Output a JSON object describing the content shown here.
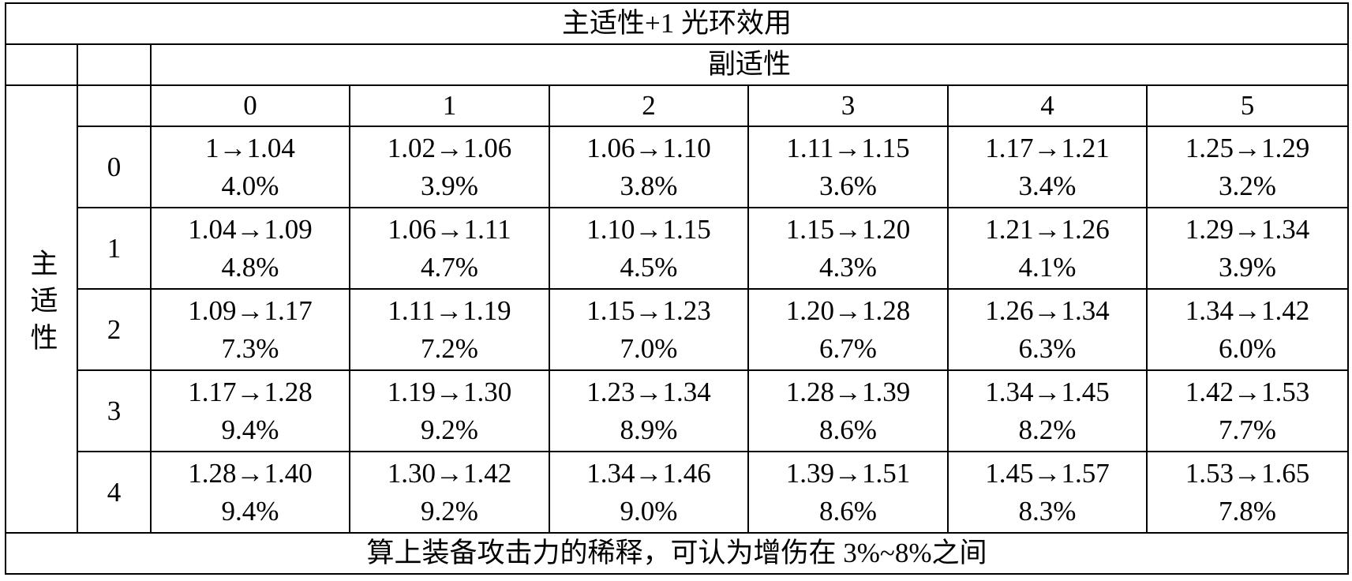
{
  "table": {
    "title": "主适性+1 光环效用",
    "column_header": "副适性",
    "row_header": "主适性",
    "columns": [
      "0",
      "1",
      "2",
      "3",
      "4",
      "5"
    ],
    "rows": [
      {
        "label": "0",
        "cells": [
          [
            "1→1.04",
            "4.0%"
          ],
          [
            "1.02→1.06",
            "3.9%"
          ],
          [
            "1.06→1.10",
            "3.8%"
          ],
          [
            "1.11→1.15",
            "3.6%"
          ],
          [
            "1.17→1.21",
            "3.4%"
          ],
          [
            "1.25→1.29",
            "3.2%"
          ]
        ]
      },
      {
        "label": "1",
        "cells": [
          [
            "1.04→1.09",
            "4.8%"
          ],
          [
            "1.06→1.11",
            "4.7%"
          ],
          [
            "1.10→1.15",
            "4.5%"
          ],
          [
            "1.15→1.20",
            "4.3%"
          ],
          [
            "1.21→1.26",
            "4.1%"
          ],
          [
            "1.29→1.34",
            "3.9%"
          ]
        ]
      },
      {
        "label": "2",
        "cells": [
          [
            "1.09→1.17",
            "7.3%"
          ],
          [
            "1.11→1.19",
            "7.2%"
          ],
          [
            "1.15→1.23",
            "7.0%"
          ],
          [
            "1.20→1.28",
            "6.7%"
          ],
          [
            "1.26→1.34",
            "6.3%"
          ],
          [
            "1.34→1.42",
            "6.0%"
          ]
        ]
      },
      {
        "label": "3",
        "cells": [
          [
            "1.17→1.28",
            "9.4%"
          ],
          [
            "1.19→1.30",
            "9.2%"
          ],
          [
            "1.23→1.34",
            "8.9%"
          ],
          [
            "1.28→1.39",
            "8.6%"
          ],
          [
            "1.34→1.45",
            "8.2%"
          ],
          [
            "1.42→1.53",
            "7.7%"
          ]
        ]
      },
      {
        "label": "4",
        "cells": [
          [
            "1.28→1.40",
            "9.4%"
          ],
          [
            "1.30→1.42",
            "9.2%"
          ],
          [
            "1.34→1.46",
            "9.0%"
          ],
          [
            "1.39→1.51",
            "8.6%"
          ],
          [
            "1.45→1.57",
            "8.3%"
          ],
          [
            "1.53→1.65",
            "7.8%"
          ]
        ]
      }
    ],
    "footer": "算上装备攻击力的稀释，可认为增伤在 3%~8%之间"
  }
}
